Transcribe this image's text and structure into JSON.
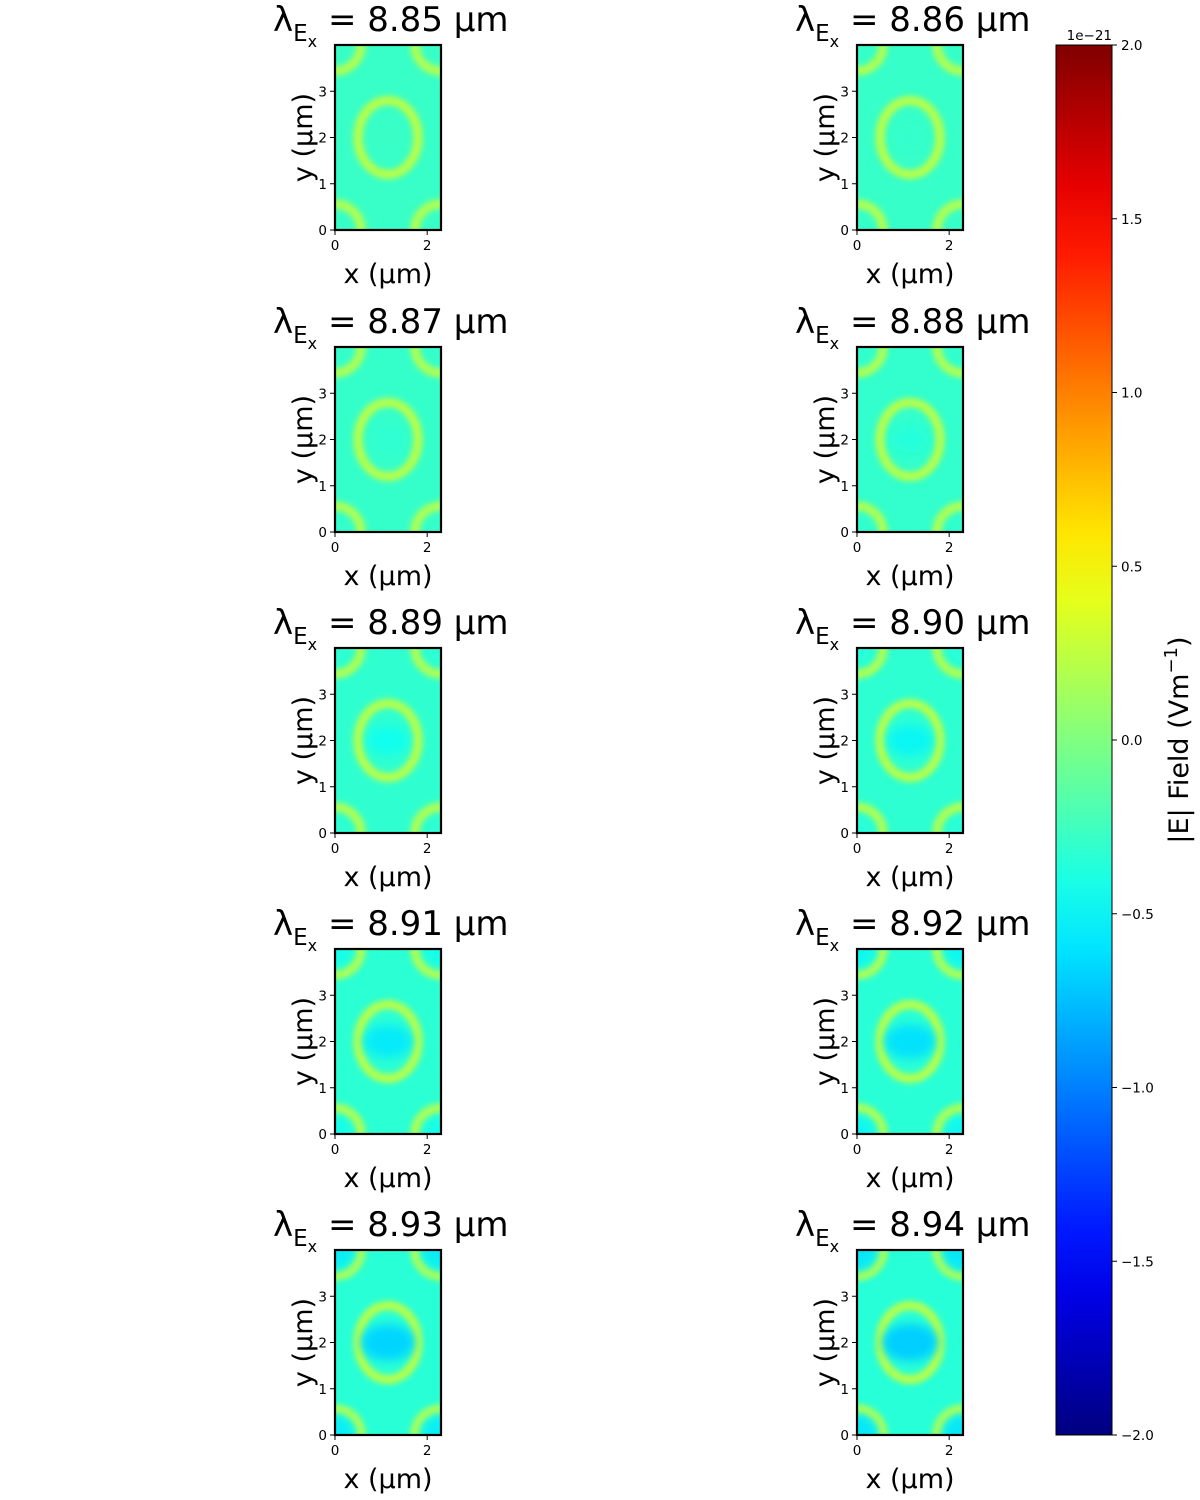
{
  "chart_data": [
    {
      "type": "heatmap",
      "panel": 1,
      "title_prefix": "λ",
      "title_sub": "E",
      "title_subsub": "x",
      "title_value": " = 8.85 µm",
      "xlabel": "x (µm)",
      "ylabel": "y (µm)",
      "xlim": [
        0,
        2.3
      ],
      "ylim": [
        0,
        4
      ],
      "xticks": [
        "0",
        "2"
      ],
      "yticks": [
        "0",
        "1",
        "2",
        "3"
      ],
      "center_dip": 0.0,
      "corner_dip": 0.0
    },
    {
      "type": "heatmap",
      "panel": 2,
      "title_prefix": "λ",
      "title_sub": "E",
      "title_subsub": "x",
      "title_value": " = 8.86 µm",
      "xlabel": "x (µm)",
      "ylabel": "y (µm)",
      "xlim": [
        0,
        2.3
      ],
      "ylim": [
        0,
        4
      ],
      "xticks": [
        "0",
        "2"
      ],
      "yticks": [
        "0",
        "1",
        "2",
        "3"
      ],
      "center_dip": 0.1,
      "corner_dip": 0.0
    },
    {
      "type": "heatmap",
      "panel": 3,
      "title_prefix": "λ",
      "title_sub": "E",
      "title_subsub": "x",
      "title_value": " = 8.87 µm",
      "xlabel": "x (µm)",
      "ylabel": "y (µm)",
      "xlim": [
        0,
        2.3
      ],
      "ylim": [
        0,
        4
      ],
      "xticks": [
        "0",
        "2"
      ],
      "yticks": [
        "0",
        "1",
        "2",
        "3"
      ],
      "center_dip": 0.2,
      "corner_dip": 0.05
    },
    {
      "type": "heatmap",
      "panel": 4,
      "title_prefix": "λ",
      "title_sub": "E",
      "title_subsub": "x",
      "title_value": " = 8.88 µm",
      "xlabel": "x (µm)",
      "ylabel": "y (µm)",
      "xlim": [
        0,
        2.3
      ],
      "ylim": [
        0,
        4
      ],
      "xticks": [
        "0",
        "2"
      ],
      "yticks": [
        "0",
        "1",
        "2",
        "3"
      ],
      "center_dip": 0.3,
      "corner_dip": 0.1
    },
    {
      "type": "heatmap",
      "panel": 5,
      "title_prefix": "λ",
      "title_sub": "E",
      "title_subsub": "x",
      "title_value": " = 8.89 µm",
      "xlabel": "x (µm)",
      "ylabel": "y (µm)",
      "xlim": [
        0,
        2.3
      ],
      "ylim": [
        0,
        4
      ],
      "xticks": [
        "0",
        "2"
      ],
      "yticks": [
        "0",
        "1",
        "2",
        "3"
      ],
      "center_dip": 0.45,
      "corner_dip": 0.2
    },
    {
      "type": "heatmap",
      "panel": 6,
      "title_prefix": "λ",
      "title_sub": "E",
      "title_subsub": "x",
      "title_value": " = 8.90 µm",
      "xlabel": "x (µm)",
      "ylabel": "y (µm)",
      "xlim": [
        0,
        2.3
      ],
      "ylim": [
        0,
        4
      ],
      "xticks": [
        "0",
        "2"
      ],
      "yticks": [
        "0",
        "1",
        "2",
        "3"
      ],
      "center_dip": 0.55,
      "corner_dip": 0.3
    },
    {
      "type": "heatmap",
      "panel": 7,
      "title_prefix": "λ",
      "title_sub": "E",
      "title_subsub": "x",
      "title_value": " = 8.91 µm",
      "xlabel": "x (µm)",
      "ylabel": "y (µm)",
      "xlim": [
        0,
        2.3
      ],
      "ylim": [
        0,
        4
      ],
      "xticks": [
        "0",
        "2"
      ],
      "yticks": [
        "0",
        "1",
        "2",
        "3"
      ],
      "center_dip": 0.65,
      "corner_dip": 0.45
    },
    {
      "type": "heatmap",
      "panel": 8,
      "title_prefix": "λ",
      "title_sub": "E",
      "title_subsub": "x",
      "title_value": " = 8.92 µm",
      "xlabel": "x (µm)",
      "ylabel": "y (µm)",
      "xlim": [
        0,
        2.3
      ],
      "ylim": [
        0,
        4
      ],
      "xticks": [
        "0",
        "2"
      ],
      "yticks": [
        "0",
        "1",
        "2",
        "3"
      ],
      "center_dip": 0.72,
      "corner_dip": 0.55
    },
    {
      "type": "heatmap",
      "panel": 9,
      "title_prefix": "λ",
      "title_sub": "E",
      "title_subsub": "x",
      "title_value": " = 8.93 µm",
      "xlabel": "x (µm)",
      "ylabel": "y (µm)",
      "xlim": [
        0,
        2.3
      ],
      "ylim": [
        0,
        4
      ],
      "xticks": [
        "0",
        "2"
      ],
      "yticks": [
        "0",
        "1",
        "2",
        "3"
      ],
      "center_dip": 0.8,
      "corner_dip": 0.65
    },
    {
      "type": "heatmap",
      "panel": 10,
      "title_prefix": "λ",
      "title_sub": "E",
      "title_subsub": "x",
      "title_value": " = 8.94 µm",
      "xlabel": "x (µm)",
      "ylabel": "y (µm)",
      "xlim": [
        0,
        2.3
      ],
      "ylim": [
        0,
        4
      ],
      "xticks": [
        "0",
        "2"
      ],
      "yticks": [
        "0",
        "1",
        "2",
        "3"
      ],
      "center_dip": 0.85,
      "corner_dip": 0.7
    }
  ],
  "colorbar": {
    "colormap": "jet",
    "range": [
      -2.0,
      2.0
    ],
    "exponent_label": "1e−21",
    "ticks": [
      "−2.0",
      "−1.5",
      "−1.0",
      "−0.5",
      "0.0",
      "0.5",
      "1.0",
      "1.5",
      "2.0"
    ],
    "label_main": "|E|  Field (Vm",
    "label_sup": "−1",
    "label_end": ")",
    "colors": [
      "#00007f",
      "#0000ff",
      "#007fff",
      "#00ffff",
      "#7fff7f",
      "#ffff00",
      "#ff7f00",
      "#ff0000",
      "#7f0000"
    ]
  }
}
